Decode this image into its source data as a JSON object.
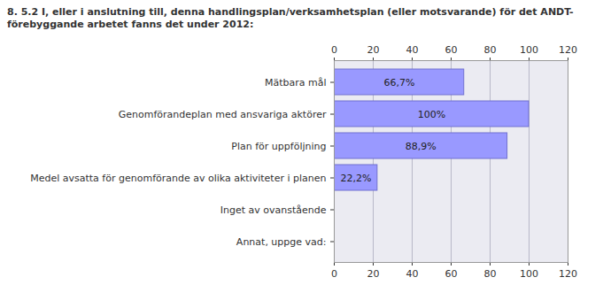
{
  "chart_data": {
    "type": "bar",
    "orientation": "horizontal",
    "title": "8. 5.2 I, eller i anslutning till, denna handlingsplan/verksamhetsplan (eller motsvarande) för det ANDT-förebyggande arbetet fanns det under 2012:",
    "categories": [
      "Mätbara mål",
      "Genomförandeplan med ansvariga aktörer",
      "Plan för uppföljning",
      "Medel avsatta för genomförande av olika aktiviteter i planen",
      "Inget av ovanstående",
      "Annat, uppge vad:"
    ],
    "values": [
      66.7,
      100,
      88.9,
      22.2,
      0,
      0
    ],
    "value_labels": [
      "66,7%",
      "100%",
      "88,9%",
      "22,2%",
      null,
      null
    ],
    "data_labels": true,
    "color": "#9999ff",
    "xlim": [
      0,
      120
    ],
    "xticks": [
      0,
      20,
      40,
      60,
      80,
      100,
      120
    ],
    "grid": true
  }
}
